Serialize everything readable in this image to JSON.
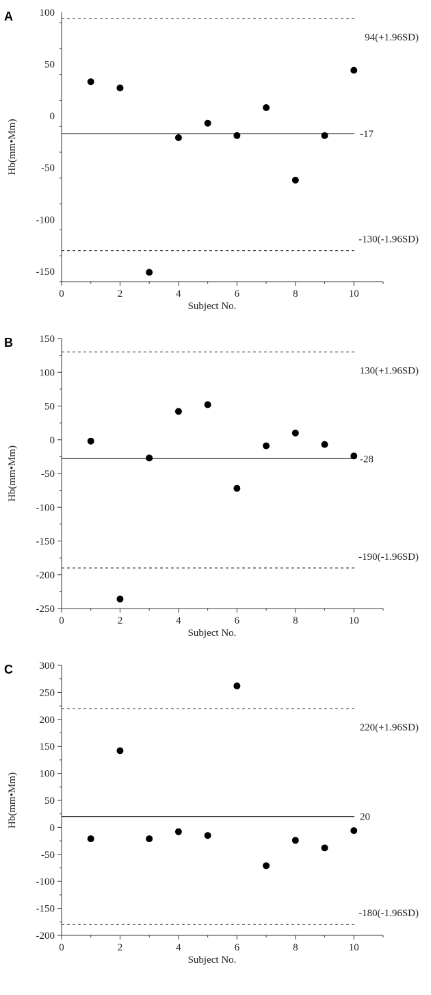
{
  "chart_data": [
    {
      "type": "scatter",
      "panel": "A",
      "xlabel": "Subject No.",
      "ylabel": "Hb(mm•Mm)",
      "xlim": [
        0,
        11
      ],
      "ylim": [
        -160,
        100
      ],
      "xticks": [
        0,
        2,
        4,
        6,
        8,
        10
      ],
      "yticks": [
        100,
        50,
        0,
        -50,
        -100,
        -150
      ],
      "x": [
        1,
        2,
        3,
        4,
        5,
        6,
        7,
        8,
        9,
        10
      ],
      "y": [
        33,
        27,
        -151,
        -21,
        -7,
        -19,
        8,
        -62,
        -19,
        44
      ],
      "reference_lines": [
        {
          "value": 94,
          "label": "94(+1.96SD)",
          "style": "dashed"
        },
        {
          "value": -17,
          "label": "-17",
          "style": "solid"
        },
        {
          "value": -130,
          "label": "-130(-1.96SD)",
          "style": "dashed"
        }
      ],
      "grid": false
    },
    {
      "type": "scatter",
      "panel": "B",
      "xlabel": "Subject No.",
      "ylabel": "Hb(mm•Mm)",
      "xlim": [
        0,
        11
      ],
      "ylim": [
        -250,
        150
      ],
      "xticks": [
        0,
        2,
        4,
        6,
        8,
        10
      ],
      "yticks": [
        150,
        100,
        50,
        0,
        -50,
        -100,
        -150,
        -200,
        -250
      ],
      "x": [
        1,
        2,
        3,
        4,
        5,
        6,
        7,
        8,
        9,
        10
      ],
      "y": [
        -2,
        -236,
        -27,
        42,
        52,
        -72,
        -9,
        10,
        -7,
        -24
      ],
      "reference_lines": [
        {
          "value": 130,
          "label": "130(+1.96SD)",
          "style": "dashed"
        },
        {
          "value": -28,
          "label": "-28",
          "style": "solid"
        },
        {
          "value": -190,
          "label": "-190(-1.96SD)",
          "style": "dashed"
        }
      ],
      "grid": false
    },
    {
      "type": "scatter",
      "panel": "C",
      "xlabel": "Subject No.",
      "ylabel": "Hb(mm•Mm)",
      "xlim": [
        0,
        11
      ],
      "ylim": [
        -200,
        300
      ],
      "xticks": [
        0,
        2,
        4,
        6,
        8,
        10
      ],
      "yticks": [
        300,
        250,
        200,
        150,
        100,
        50,
        0,
        -50,
        -100,
        -150,
        -200
      ],
      "x": [
        1,
        2,
        3,
        4,
        5,
        6,
        7,
        8,
        9,
        10
      ],
      "y": [
        -21,
        142,
        -21,
        -8,
        -15,
        262,
        -71,
        -24,
        -38,
        -6
      ],
      "reference_lines": [
        {
          "value": 220,
          "label": "220(+1.96SD)",
          "style": "dashed"
        },
        {
          "value": 20,
          "label": "20",
          "style": "solid"
        },
        {
          "value": -180,
          "label": "-180(-1.96SD)",
          "style": "dashed"
        }
      ],
      "grid": false
    }
  ]
}
